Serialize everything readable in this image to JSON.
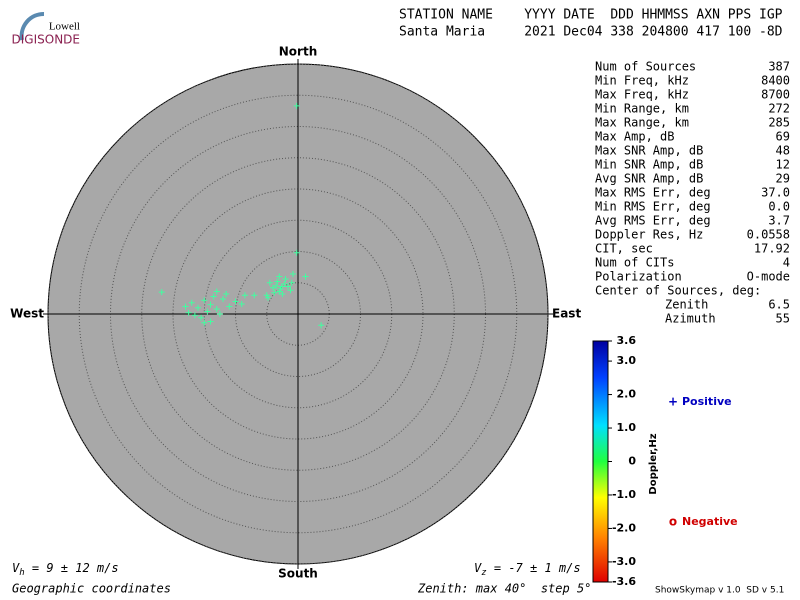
{
  "logo": {
    "top": "Lowell",
    "bottom": "DIGISONDE"
  },
  "header": {
    "line1": "STATION NAME    YYYY DATE  DDD HHMMSS AXN PPS IGP",
    "line2": "Santa Maria     2021 Dec04 338 204800 417 100 -8D"
  },
  "stats": [
    {
      "label": "Num of Sources",
      "value": "387"
    },
    {
      "label": "Min Freq, kHz",
      "value": "8400"
    },
    {
      "label": "Max Freq, kHz",
      "value": "8700"
    },
    {
      "label": "Min Range, km",
      "value": "272"
    },
    {
      "label": "Max Range, km",
      "value": "285"
    },
    {
      "label": "Max Amp, dB",
      "value": "69"
    },
    {
      "label": "Max SNR Amp, dB",
      "value": "48"
    },
    {
      "label": "Min SNR Amp, dB",
      "value": "12"
    },
    {
      "label": "Avg SNR Amp, dB",
      "value": "29"
    },
    {
      "label": "Max RMS Err, deg",
      "value": "37.0"
    },
    {
      "label": "Min RMS Err, deg",
      "value": "0.0"
    },
    {
      "label": "Avg RMS Err, deg",
      "value": "3.7"
    },
    {
      "label": "Doppler Res, Hz",
      "value": "0.0558"
    },
    {
      "label": "CIT, sec",
      "value": "17.92"
    },
    {
      "label": "Num of CITs",
      "value": "4"
    },
    {
      "label": "Polarization",
      "value": "O-mode"
    },
    {
      "label": "Center of Sources, deg:",
      "value": ""
    },
    {
      "label": "Zenith",
      "value": "6.5"
    },
    {
      "label": "Azimuth",
      "value": "55"
    }
  ],
  "legend": {
    "positive": "Positive",
    "negative": "Negative",
    "positive_marker": "+",
    "negative_marker": "o"
  },
  "footer": {
    "vh_v": "V",
    "vh_sub": "h",
    "vh_text": " = 9 ± 12 m/s",
    "vz_v": "V",
    "vz_sub": "z",
    "vz_text": " = -7 ± 1 m/s",
    "coords": "Geographic coordinates",
    "zenith": "Zenith: max 40°  step 5°",
    "version": "ShowSkymap v 1.0  SD v 5.1"
  },
  "chart_data": {
    "type": "polar-scatter",
    "directions": {
      "north": "North",
      "south": "South",
      "east": "East",
      "west": "West"
    },
    "rlim": [
      0,
      40
    ],
    "rings": [
      5,
      10,
      15,
      20,
      25,
      30,
      35,
      40
    ],
    "color": "#40ffa0",
    "x": [
      -3.5,
      -2.8,
      -2.2,
      -3.0,
      -4.0,
      -1.6,
      -2.5,
      -3.3,
      -1.2,
      -4.5,
      -2.0,
      -3.8,
      -1.0,
      -2.6,
      -0.8,
      -3.0,
      -5.0,
      -4.8,
      -14,
      -15,
      -13,
      -16,
      -12,
      -14.5,
      -13.5,
      -17,
      -15.5,
      -11,
      -10,
      -12.5,
      -16.5,
      -18,
      -14,
      -9,
      -8.5,
      -11.5,
      -13,
      -17.5,
      -15,
      -0.2,
      -21.8,
      3.7,
      -0.2,
      1.2,
      -7
    ],
    "y": [
      4.5,
      4.0,
      4.8,
      3.6,
      4.2,
      4.4,
      3.2,
      5.2,
      3.8,
      5.0,
      5.6,
      3.4,
      5.0,
      4.4,
      6.4,
      6.0,
      3.0,
      2.6,
      1.5,
      2.2,
      0.8,
      1.0,
      2.4,
      0.4,
      2.8,
      1.8,
      -0.6,
      1.2,
      2.0,
      0.0,
      -0.2,
      1.2,
      -1.2,
      1.6,
      3.0,
      3.2,
      3.6,
      0.2,
      -1.4,
      33.3,
      3.5,
      -1.8,
      9.8,
      6.0,
      3
    ],
    "colorbar": {
      "label": "Doppler,Hz",
      "lim": [
        -3.6,
        3.6
      ],
      "ticks": [
        3.6,
        {
          "value": 3,
          "label": "3.0"
        },
        {
          "value": 2,
          "label": "2.0"
        },
        {
          "value": 1,
          "label": "1.0"
        },
        0,
        {
          "value": -1,
          "label": "-1.0"
        },
        {
          "value": -2,
          "label": "-2.0"
        },
        {
          "value": -3,
          "label": "-3.0"
        },
        -3.6
      ]
    }
  }
}
